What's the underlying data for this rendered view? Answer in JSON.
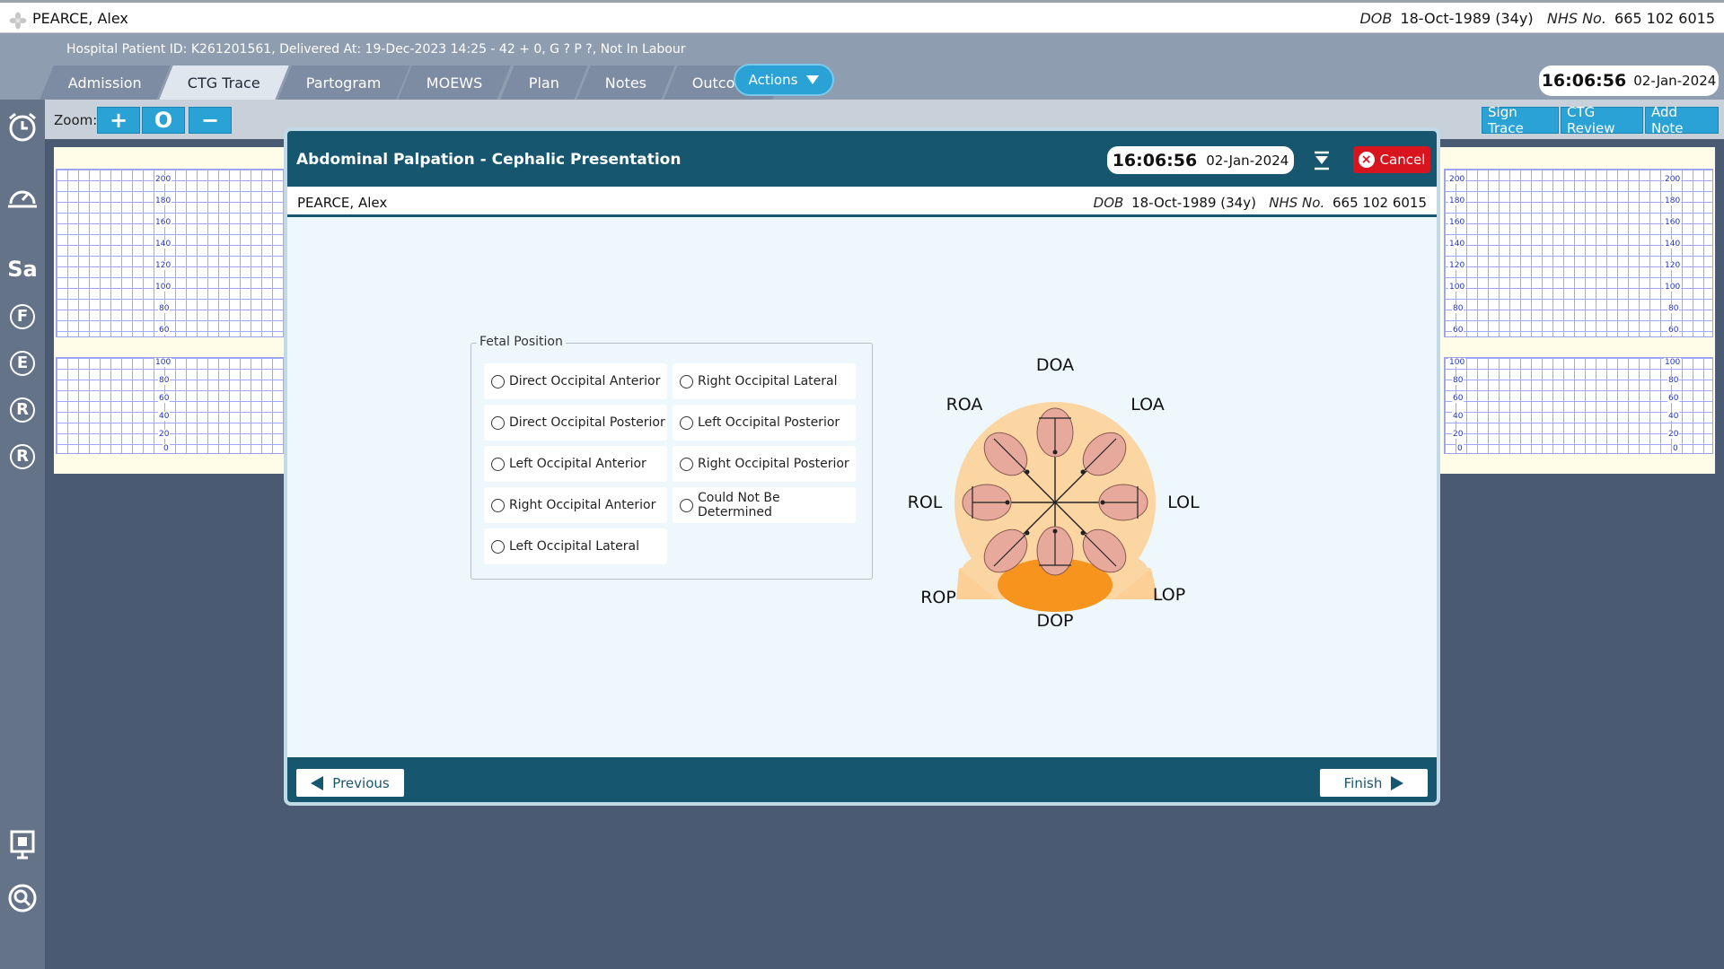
{
  "patient": {
    "name": "PEARCE, Alex",
    "dob_label": "DOB",
    "dob_value": "18-Oct-1989 (34y)",
    "nhs_label": "NHS No.",
    "nhs_value": "665 102 6015"
  },
  "header": {
    "hospital_info": "Hospital Patient ID: K261201561, Delivered At: 19-Dec-2023 14:25 - 42 + 0, G ? P ?,   Not In Labour",
    "tabs": [
      {
        "label": "Admission"
      },
      {
        "label": "CTG Trace"
      },
      {
        "label": "Partogram"
      },
      {
        "label": "MOEWS"
      },
      {
        "label": "Plan"
      },
      {
        "label": "Notes"
      },
      {
        "label": "Outcome"
      }
    ],
    "active_tab": "CTG Trace",
    "actions_label": "Actions",
    "time": "16:06:56",
    "date": "02-Jan-2024"
  },
  "sidebar": {
    "letters": [
      "Sa",
      "F",
      "E",
      "R",
      "R"
    ]
  },
  "zoom": {
    "label": "Zoom:",
    "plus": "+",
    "reset": "O",
    "minus": "−"
  },
  "right_buttons": {
    "sign_trace": "Sign Trace",
    "ctg_review": "CTG Review",
    "add_note": "Add Note"
  },
  "ctg_scale": {
    "fhr": [
      "200",
      "180",
      "160",
      "140",
      "120",
      "100",
      "80",
      "60"
    ],
    "toco": [
      "100",
      "80",
      "60",
      "40",
      "20",
      "0"
    ]
  },
  "modal": {
    "title": "Abdominal Palpation - Cephalic Presentation",
    "time": "16:06:56",
    "date": "02-Jan-2024",
    "cancel_label": "Cancel",
    "fetal_position_legend": "Fetal Position",
    "options": [
      "Direct Occipital Anterior",
      "Right Occipital Lateral",
      "Direct Occipital Posterior",
      "Left Occipital Posterior",
      "Left Occipital Anterior",
      "Right Occipital Posterior",
      "Right Occipital Anterior",
      "Could Not Be Determined",
      "Left Occipital Lateral"
    ],
    "diagram_labels": {
      "doa": "DOA",
      "roa": "ROA",
      "loa": "LOA",
      "rol": "ROL",
      "lol": "LOL",
      "rop": "ROP",
      "lop": "LOP",
      "dop": "DOP"
    },
    "previous_label": "Previous",
    "finish_label": "Finish"
  },
  "colors": {
    "modal_header": "#17566f",
    "accent": "#2aa2d6",
    "cancel": "#d8141f",
    "uterus": "#fbd6a2",
    "pelvis": "#f7941d",
    "fetal_head": "#e6a99c"
  }
}
